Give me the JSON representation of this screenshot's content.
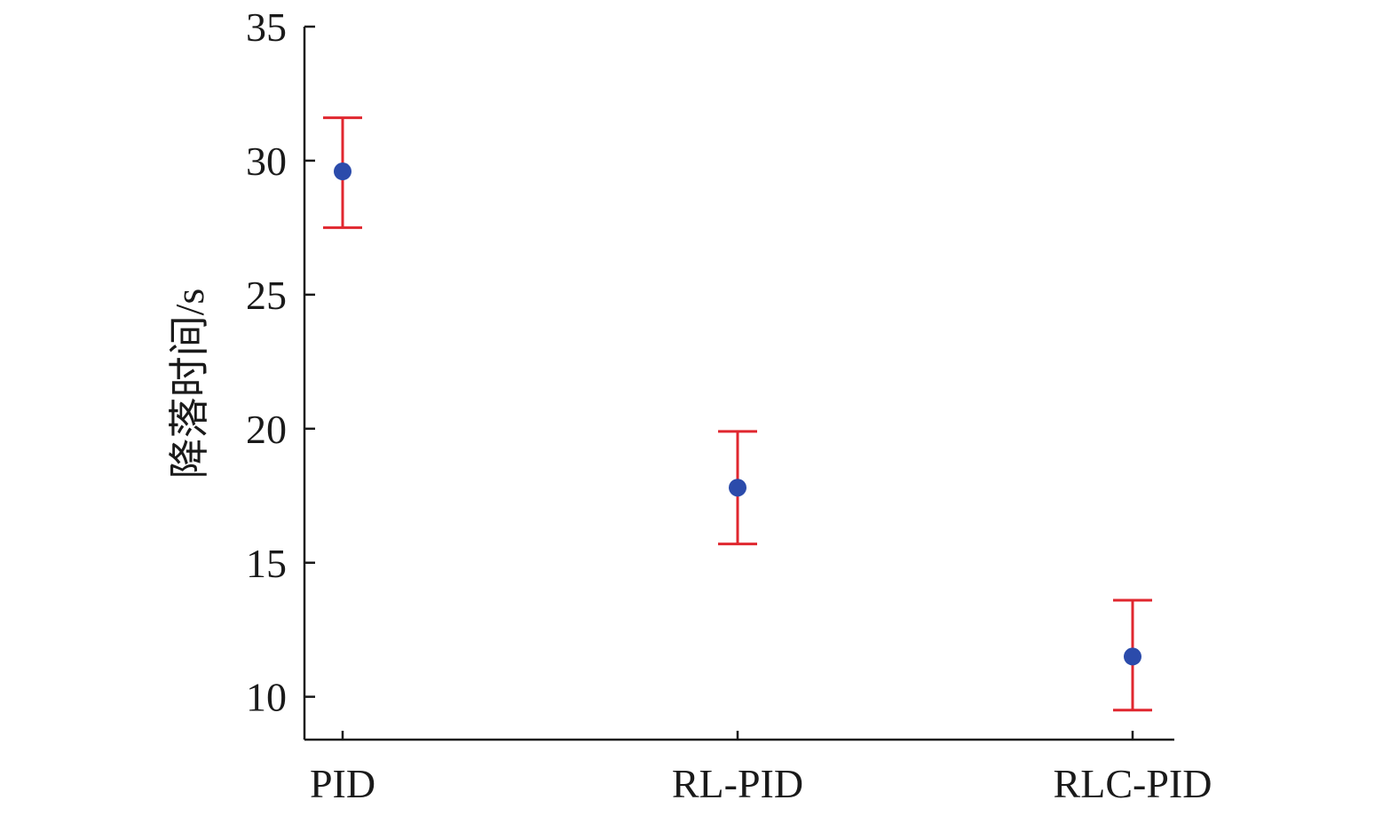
{
  "chart_data": {
    "type": "scatter",
    "title": "",
    "xlabel": "",
    "ylabel": "降落时间/s",
    "categories": [
      "PID",
      "RL-PID",
      "RLC-PID"
    ],
    "series": [
      {
        "values": [
          29.6,
          17.8,
          11.5
        ],
        "error_low": [
          27.5,
          15.7,
          9.5
        ],
        "error_high": [
          31.6,
          19.9,
          13.6
        ]
      }
    ],
    "ylim": [
      8.4,
      35
    ],
    "yticks": [
      10,
      15,
      20,
      25,
      30,
      35
    ],
    "grid": false,
    "legend": "none",
    "colors": {
      "point": "#2b4bab",
      "errorbar": "#e0272f",
      "axis": "#1a1a1a"
    }
  }
}
